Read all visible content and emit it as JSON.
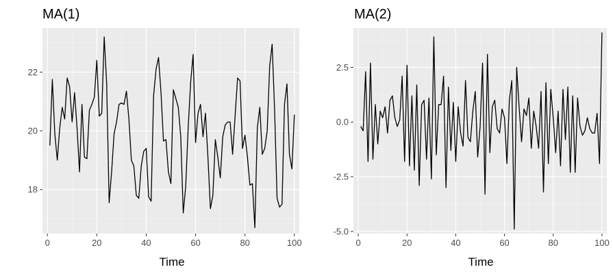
{
  "chart_data": [
    {
      "type": "line",
      "title": "MA(1)",
      "xlabel": "Time",
      "ylabel": "",
      "xlim": [
        -2,
        102
      ],
      "ylim": [
        16.5,
        23.5
      ],
      "x_ticks": [
        0,
        20,
        40,
        60,
        80,
        100
      ],
      "x_tick_labels": [
        "0",
        "20",
        "40",
        "60",
        "80",
        "100"
      ],
      "y_ticks": [
        18,
        20,
        22
      ],
      "y_tick_labels": [
        "18",
        "20",
        "22"
      ],
      "grid": true,
      "series": [
        {
          "color": "#000000",
          "x": [
            1,
            2,
            3,
            4,
            5,
            6,
            7,
            8,
            9,
            10,
            11,
            12,
            13,
            14,
            15,
            16,
            17,
            18,
            19,
            20,
            21,
            22,
            23,
            24,
            25,
            26,
            27,
            28,
            29,
            30,
            31,
            32,
            33,
            34,
            35,
            36,
            37,
            38,
            39,
            40,
            41,
            42,
            43,
            44,
            45,
            46,
            47,
            48,
            49,
            50,
            51,
            52,
            53,
            54,
            55,
            56,
            57,
            58,
            59,
            60,
            61,
            62,
            63,
            64,
            65,
            66,
            67,
            68,
            69,
            70,
            71,
            72,
            73,
            74,
            75,
            76,
            77,
            78,
            79,
            80,
            81,
            82,
            83,
            84,
            85,
            86,
            87,
            88,
            89,
            90,
            91,
            92,
            93,
            94,
            95,
            96,
            97,
            98,
            99,
            100
          ],
          "values": [
            19.5,
            21.75,
            19.9,
            19.0,
            20.1,
            20.8,
            20.4,
            21.8,
            21.5,
            20.3,
            21.3,
            20.1,
            18.6,
            20.9,
            19.1,
            19.05,
            20.7,
            20.9,
            21.15,
            22.4,
            20.5,
            20.6,
            23.2,
            21.6,
            17.55,
            18.6,
            19.9,
            20.3,
            20.9,
            20.95,
            20.9,
            21.35,
            20.4,
            19.0,
            18.8,
            17.8,
            17.7,
            18.8,
            19.3,
            19.4,
            17.75,
            17.6,
            21.2,
            22.1,
            22.5,
            21.3,
            19.65,
            19.7,
            18.6,
            18.2,
            21.4,
            21.1,
            20.8,
            19.8,
            17.2,
            18.1,
            20.1,
            21.65,
            22.6,
            19.6,
            20.6,
            20.9,
            19.8,
            20.6,
            19.1,
            17.35,
            17.8,
            19.7,
            19.1,
            18.4,
            19.8,
            20.2,
            20.3,
            20.3,
            19.2,
            20.5,
            21.8,
            21.7,
            19.4,
            19.85,
            19.1,
            18.15,
            18.2,
            16.7,
            20.1,
            20.8,
            19.2,
            19.4,
            20.0,
            22.2,
            22.95,
            20.7,
            17.7,
            17.4,
            17.5,
            20.9,
            21.6,
            19.2,
            18.7,
            20.55
          ]
        }
      ]
    },
    {
      "type": "line",
      "title": "MA(2)",
      "xlabel": "Time",
      "ylabel": "",
      "xlim": [
        -2,
        102
      ],
      "ylim": [
        -5.1,
        4.3
      ],
      "x_ticks": [
        0,
        20,
        40,
        60,
        80,
        100
      ],
      "x_tick_labels": [
        "0",
        "20",
        "40",
        "60",
        "80",
        "100"
      ],
      "y_ticks": [
        -5.0,
        -2.5,
        0.0,
        2.5
      ],
      "y_tick_labels": [
        "-5.0",
        "-2.5",
        "0.0",
        "2.5"
      ],
      "grid": true,
      "series": [
        {
          "color": "#000000",
          "x": [
            1,
            2,
            3,
            4,
            5,
            6,
            7,
            8,
            9,
            10,
            11,
            12,
            13,
            14,
            15,
            16,
            17,
            18,
            19,
            20,
            21,
            22,
            23,
            24,
            25,
            26,
            27,
            28,
            29,
            30,
            31,
            32,
            33,
            34,
            35,
            36,
            37,
            38,
            39,
            40,
            41,
            42,
            43,
            44,
            45,
            46,
            47,
            48,
            49,
            50,
            51,
            52,
            53,
            54,
            55,
            56,
            57,
            58,
            59,
            60,
            61,
            62,
            63,
            64,
            65,
            66,
            67,
            68,
            69,
            70,
            71,
            72,
            73,
            74,
            75,
            76,
            77,
            78,
            79,
            80,
            81,
            82,
            83,
            84,
            85,
            86,
            87,
            88,
            89,
            90,
            91,
            92,
            93,
            94,
            95,
            96,
            97,
            98,
            99,
            100
          ],
          "values": [
            -0.2,
            -0.4,
            2.3,
            -1.8,
            2.7,
            -1.7,
            0.8,
            -1.0,
            0.5,
            0.2,
            0.7,
            -0.5,
            1.0,
            1.2,
            0.2,
            -0.2,
            0.1,
            2.1,
            -1.8,
            2.6,
            -2.0,
            1.2,
            -2.2,
            1.7,
            -2.9,
            0.8,
            1.0,
            -1.7,
            1.1,
            -2.6,
            3.9,
            -1.5,
            0.8,
            0.8,
            2.1,
            -3.0,
            1.6,
            -1.3,
            0.9,
            -1.8,
            0.7,
            -0.5,
            -1.1,
            1.9,
            -0.7,
            -0.9,
            0.5,
            1.4,
            -1.6,
            -0.2,
            2.7,
            -3.3,
            3.1,
            -1.4,
            0.7,
            1.0,
            -0.3,
            -0.5,
            0.6,
            0.2,
            -1.9,
            1.0,
            1.9,
            -4.9,
            2.5,
            0.7,
            -0.9,
            0.6,
            0.3,
            1.1,
            -1.2,
            0.5,
            -0.2,
            -1.2,
            1.4,
            -3.2,
            1.8,
            -1.9,
            1.5,
            0.2,
            -1.4,
            0.5,
            -2.0,
            1.5,
            -0.8,
            1.6,
            -2.3,
            1.2,
            -2.3,
            1.1,
            -0.2,
            -0.6,
            -0.4,
            0.2,
            -0.3,
            -0.5,
            -0.5,
            0.4,
            -1.9,
            4.1
          ]
        }
      ]
    }
  ]
}
